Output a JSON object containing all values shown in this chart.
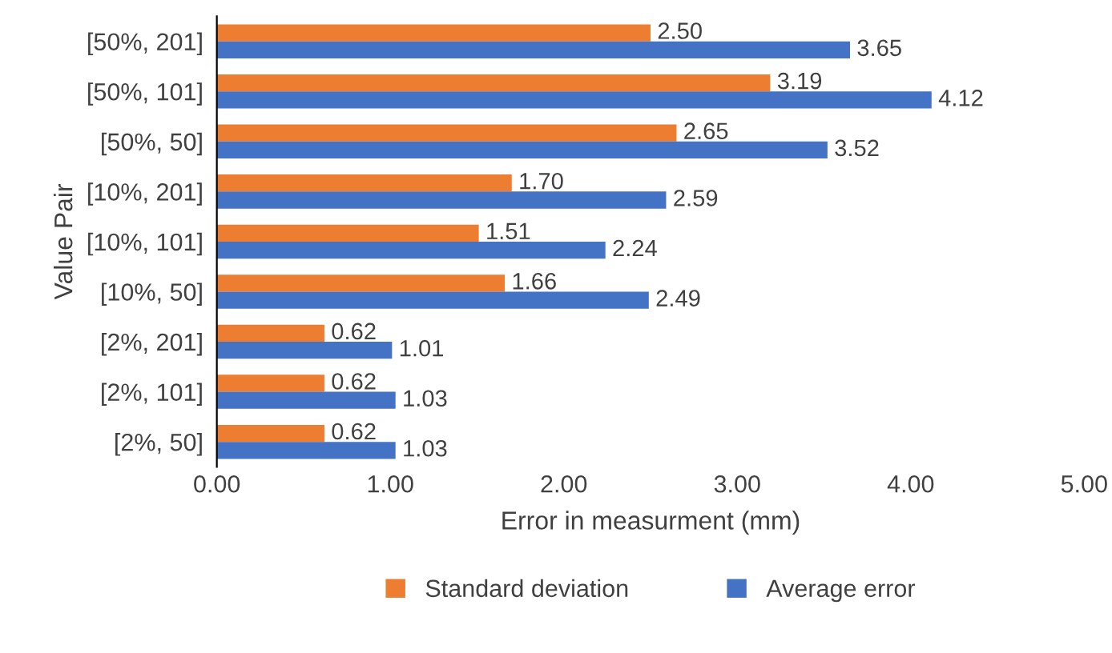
{
  "chart_data": {
    "type": "bar",
    "orientation": "horizontal",
    "ylabel": "Value Pair",
    "xlabel": "Error in measurment (mm)",
    "categories": [
      "[50%, 201]",
      "[50%, 101]",
      "[50%, 50]",
      "[10%, 201]",
      "[10%, 101]",
      "[10%, 50]",
      "[2%, 201]",
      "[2%, 101]",
      "[2%, 50]"
    ],
    "series": [
      {
        "name": "Standard deviation",
        "color": "#ed7d31",
        "values": [
          2.5,
          3.19,
          2.65,
          1.7,
          1.51,
          1.66,
          0.62,
          0.62,
          0.62
        ],
        "value_labels": [
          "2.50",
          "3.19",
          "2.65",
          "1.70",
          "1.51",
          "1.66",
          "0.62",
          "0.62",
          "0.62"
        ]
      },
      {
        "name": "Average error",
        "color": "#4472c4",
        "values": [
          3.65,
          4.12,
          3.52,
          2.59,
          2.24,
          2.49,
          1.01,
          1.03,
          1.03
        ],
        "value_labels": [
          "3.65",
          "4.12",
          "3.52",
          "2.59",
          "2.24",
          "2.49",
          "1.01",
          "1.03",
          "1.03"
        ]
      }
    ],
    "xlim": [
      0,
      5
    ],
    "xticks": [
      {
        "value": 0,
        "label": "0.00"
      },
      {
        "value": 1,
        "label": "1.00"
      },
      {
        "value": 2,
        "label": "2.00"
      },
      {
        "value": 3,
        "label": "3.00"
      },
      {
        "value": 4,
        "label": "4.00"
      },
      {
        "value": 5,
        "label": "5.00"
      }
    ],
    "grid": false,
    "legend": "bottom"
  }
}
